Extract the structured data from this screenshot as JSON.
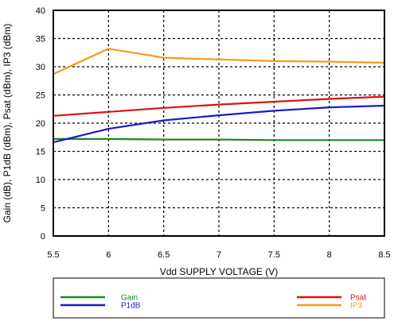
{
  "chart_data": {
    "type": "line",
    "xlabel": "Vdd SUPPLY VOLTAGE (V)",
    "ylabel": "Gain (dB), P1dB (dBm), Psat (dBm), IP3 (dBm)",
    "xlim": [
      5.5,
      8.5
    ],
    "ylim": [
      0,
      40
    ],
    "xticks": [
      "5.5",
      "6",
      "6.5",
      "7",
      "7.5",
      "8",
      "8.5"
    ],
    "yticks": [
      "0",
      "5",
      "10",
      "15",
      "20",
      "25",
      "30",
      "35",
      "40"
    ],
    "grid": "dotted",
    "legend_position": "bottom",
    "x": [
      5.5,
      6.0,
      6.5,
      7.0,
      7.5,
      8.0,
      8.5
    ],
    "series": [
      {
        "name": "Gain",
        "color": "#1a8a1a",
        "values": [
          17.2,
          17.2,
          17.1,
          17.1,
          17.0,
          17.0,
          17.0
        ]
      },
      {
        "name": "P1dB",
        "color": "#1a1acc",
        "values": [
          16.6,
          19.0,
          20.5,
          21.4,
          22.2,
          22.8,
          23.1
        ]
      },
      {
        "name": "Psat",
        "color": "#dd1111",
        "values": [
          21.3,
          22.0,
          22.7,
          23.3,
          23.8,
          24.3,
          24.7
        ]
      },
      {
        "name": "IP3",
        "color": "#f59a1a",
        "values": [
          28.7,
          33.2,
          31.6,
          31.3,
          31.0,
          30.9,
          30.7
        ]
      }
    ]
  }
}
